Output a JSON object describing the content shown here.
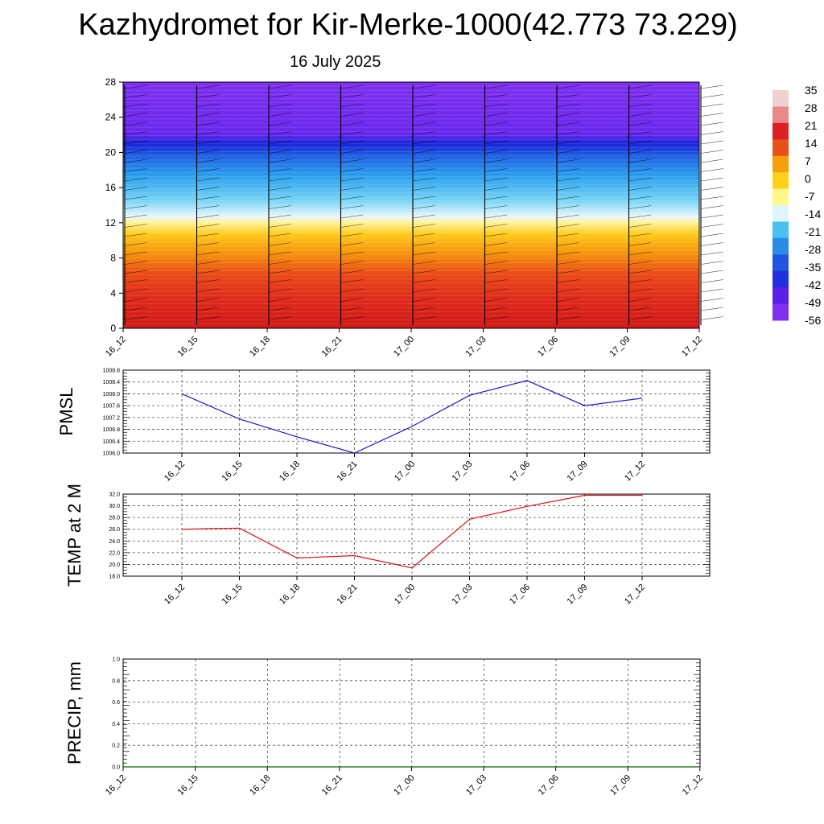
{
  "header": {
    "title": "Kazhydromet for Kir-Merke-1000(42.773 73.229)",
    "date": "16 July 2025"
  },
  "chart_data": [
    {
      "type": "heatmap",
      "title": "",
      "x_tick_labels": [
        "16_12",
        "16_15",
        "16_18",
        "16_21",
        "17_00",
        "17_03",
        "17_06",
        "17_09",
        "17_12"
      ],
      "y_ticks": [
        0,
        4,
        8,
        12,
        16,
        20,
        24,
        28
      ],
      "ylim": [
        0,
        28
      ],
      "colorbar_labels": [
        "35",
        "28",
        "21",
        "14",
        "7",
        "0",
        "-7",
        "-14",
        "-21",
        "-28",
        "-35",
        "-42",
        "-49",
        "-56"
      ],
      "colorbar_colors": [
        "#f0d0d0",
        "#e88a8a",
        "#dd2020",
        "#e8501a",
        "#f5a00a",
        "#ffd21a",
        "#fff78a",
        "#e0f4ff",
        "#4ac0f0",
        "#2a8ae8",
        "#1f55e0",
        "#2030e0",
        "#5a20ea",
        "#8030f0"
      ],
      "grid": false,
      "wind_barbs": true
    },
    {
      "type": "line",
      "ylabel": "PMSL",
      "categories": [
        "16_12",
        "16_15",
        "16_18",
        "16_21",
        "17_00",
        "17_03",
        "17_06",
        "17_09",
        "17_12"
      ],
      "values": [
        1008.0,
        1007.15,
        1006.55,
        1006.0,
        1006.9,
        1007.95,
        1008.45,
        1007.6,
        1007.85
      ],
      "ylim": [
        1006.0,
        1008.8
      ],
      "y_tick_labels": [
        "1008.8",
        "1008.4",
        "1008.0",
        "1007.6",
        "1007.2",
        "1006.8",
        "1006.4",
        "1006.0"
      ],
      "color": "#1a1acc",
      "grid": true
    },
    {
      "type": "line",
      "ylabel": "TEMP at 2 M",
      "categories": [
        "16_12",
        "16_15",
        "16_18",
        "16_21",
        "17_00",
        "17_03",
        "17_06",
        "17_09",
        "17_12"
      ],
      "values": [
        26.0,
        26.2,
        21.1,
        21.5,
        19.4,
        27.7,
        29.9,
        31.8,
        31.8
      ],
      "ylim": [
        18.0,
        32.0
      ],
      "y_tick_labels": [
        "32.0",
        "30.0",
        "28.0",
        "26.0",
        "24.0",
        "22.0",
        "20.0",
        "18.0"
      ],
      "color": "#dd1111",
      "grid": true
    },
    {
      "type": "line",
      "ylabel": "PRECIP, mm",
      "categories": [
        "16_12",
        "16_15",
        "16_18",
        "16_21",
        "17_00",
        "17_03",
        "17_06",
        "17_09",
        "17_12"
      ],
      "values": [
        0,
        0,
        0,
        0,
        0,
        0,
        0,
        0,
        0
      ],
      "ylim": [
        0.0,
        1.0
      ],
      "y_tick_labels": [
        "1.0",
        "0.8",
        "0.6",
        "0.4",
        "0.2",
        "0.0"
      ],
      "color": "#006600",
      "grid": true
    }
  ]
}
